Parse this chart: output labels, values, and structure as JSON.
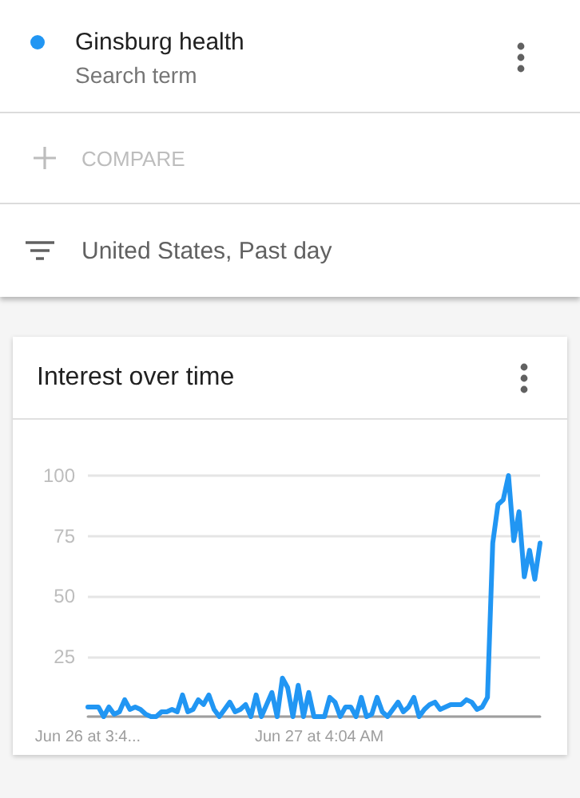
{
  "chart_data": {
    "type": "line",
    "title": "Interest over time",
    "annotations": [
      "Search term",
      "COMPARE",
      "United States, Past day"
    ],
    "legend": "top left",
    "categories": [
      "Jun 26 at 3:4...",
      null,
      null,
      null,
      null,
      null,
      null,
      null,
      null,
      null,
      null,
      null,
      null,
      null,
      null,
      null,
      null,
      null,
      null,
      null,
      null,
      null,
      null,
      null,
      null,
      null,
      null,
      null,
      null,
      null,
      null,
      null,
      null,
      null,
      null,
      null,
      null,
      null,
      null,
      null,
      null,
      null,
      null,
      null,
      "Jun 27 at 4:04 AM",
      null,
      null,
      null,
      null,
      null,
      null,
      null,
      null,
      null,
      null,
      null,
      null,
      null,
      null,
      null,
      null,
      null,
      null,
      null,
      null,
      null,
      null,
      null,
      null,
      null,
      null,
      null,
      null,
      null,
      null,
      null,
      null,
      null,
      null,
      null,
      null,
      null,
      null,
      null,
      null,
      null,
      null
    ],
    "series": [
      {
        "name": "Ginsburg health",
        "color": "#2196f3",
        "values": [
          4,
          4,
          4,
          0,
          4,
          1,
          2,
          7,
          3,
          4,
          3,
          1,
          0,
          0,
          2,
          2,
          3,
          2,
          9,
          2,
          3,
          7,
          5,
          9,
          3,
          0,
          3,
          6,
          2,
          3,
          5,
          0,
          9,
          0,
          5,
          10,
          0,
          16,
          12,
          0,
          13,
          0,
          10,
          0,
          0,
          0,
          8,
          6,
          0,
          4,
          4,
          0,
          8,
          0,
          1,
          8,
          2,
          0,
          3,
          6,
          2,
          4,
          8,
          0,
          3,
          5,
          6,
          3,
          4,
          5,
          5,
          5,
          7,
          6,
          3,
          4,
          8,
          72,
          88,
          90,
          100,
          73,
          85,
          58,
          69,
          57,
          72
        ]
      }
    ],
    "ylim": [
      0,
      100
    ],
    "yticks": [
      {
        "value": 0,
        "label": null
      },
      25,
      50,
      75,
      100
    ],
    "grid": "y"
  }
}
